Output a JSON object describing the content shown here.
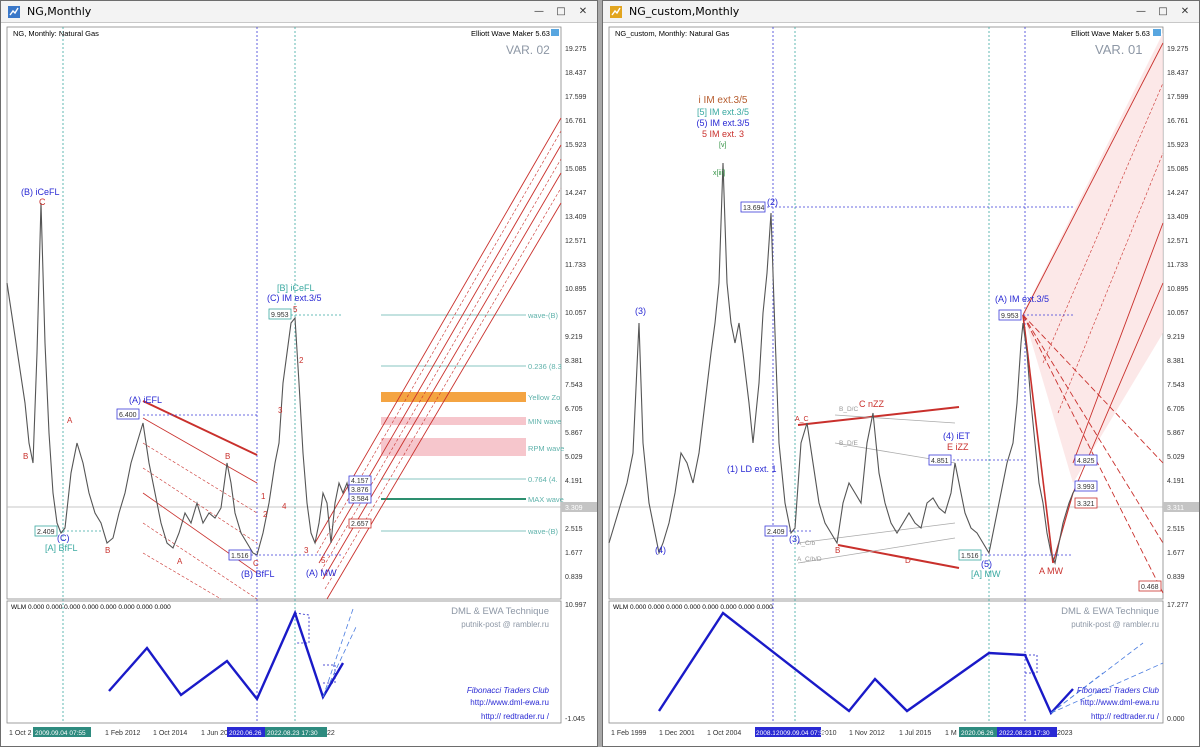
{
  "left": {
    "window_title": "NG,Monthly",
    "symbol_caption": "NG, Monthly:  Natural Gas",
    "indicator_name": "Elliott Wave Maker 5.63",
    "variant_label": "VAR. 02",
    "price_axis": [
      "19.275",
      "18.437",
      "17.599",
      "16.761",
      "15.923",
      "15.085",
      "14.247",
      "13.409",
      "12.571",
      "11.733",
      "10.895",
      "10.057",
      "9.219",
      "8.381",
      "7.543",
      "6.705",
      "5.867",
      "5.029",
      "4.191",
      "3.353",
      "2.515",
      "1.677",
      "0.839"
    ],
    "current_price": "3.309",
    "levels": [
      {
        "label": "wave-(B)",
        "color": "#5fb2ab"
      },
      {
        "label": "0.236 (8.3",
        "color": "#5fb2ab"
      },
      {
        "label": "Yellow Zo",
        "color": "#f4a442"
      },
      {
        "label": "MIN wave",
        "color": "#f2a7b0"
      },
      {
        "label": "RPM wave",
        "color": "#f2a7b0"
      },
      {
        "label": "0.764 (4.",
        "color": "#5fb2ab"
      },
      {
        "label": "MAX wave",
        "color": "#2d8f6f"
      },
      {
        "label": "wave-(B)",
        "color": "#5fb2ab"
      }
    ],
    "wave_labels": {
      "b_icefl": "(B) iCeFL",
      "c_top": "C",
      "a1": "A",
      "b1": "B",
      "c_bfl": "(C)",
      "a_bfl": "[A] BfFL",
      "b_bottom": "B",
      "a_iefl": "(A) iEFL",
      "b_mid": "B",
      "a_low": "A",
      "c_low": "C",
      "b_bfl": "(B) BfFL",
      "icefl_b": "[B] iCeFL",
      "c_im": "(C) IM ext.3/5",
      "w5": "5",
      "w3": "3",
      "w2": "2",
      "w1": "1",
      "w4": "4",
      "w2b": "2",
      "w3b": "3",
      "w5b": "5",
      "a_mw": "(A) MW"
    },
    "price_boxes": {
      "p9953": "9.953",
      "p6400": "6.400",
      "p2409": "2.409",
      "p1516": "1.516",
      "p4157": "4.157",
      "p3876": "3.876",
      "p3584": "3.584",
      "p2657": "2.657"
    },
    "sub_caption": "WLM 0.000 0.000 0.000 0.000 0.000 0.000 0.000 0.000",
    "sub_axis": [
      "10.997",
      "-1.045"
    ],
    "brand1": "DML & EWA Technique",
    "brand2": "putnik-post @ rambler.ru",
    "club1": "Fibonacci    Traders    Club",
    "club2": "http://www.dml-ewa.ru",
    "club3": "http://  redtrader.ru  /",
    "time_axis": [
      "1 Oct 2",
      "1 Feb 2012",
      "1 Oct 2014",
      "1 Jun 20",
      "22"
    ],
    "time_markers": [
      "2009.09.04 07:55",
      "2020.06.26",
      "2022.08.23 17:30"
    ]
  },
  "right": {
    "window_title": "NG_custom,Monthly",
    "symbol_caption": "NG_custom, Monthly:  Natural Gas",
    "indicator_name": "Elliott Wave Maker 5.63",
    "variant_label": "VAR. 01",
    "price_axis": [
      "19.275",
      "18.437",
      "17.599",
      "16.761",
      "15.923",
      "15.085",
      "14.247",
      "13.409",
      "12.571",
      "11.733",
      "10.895",
      "10.057",
      "9.219",
      "8.381",
      "7.543",
      "6.705",
      "5.867",
      "5.029",
      "4.191",
      "3.353",
      "2.515",
      "1.677",
      "0.839"
    ],
    "current_price": "3.311",
    "top_labels": [
      "i IM ext.3/5",
      "[5] IM ext.3/5",
      "(5) IM ext.3/5",
      "5 IM ext. 3"
    ],
    "wave_labels": {
      "v": "[v]",
      "xiii": "x[iii]",
      "w2": "(2)",
      "w3": "(3)",
      "w4": "(4)",
      "ld": "(1) LD ext. 1",
      "c_nzz": "C nZZ",
      "iet4": "(4) iET",
      "e_izz": "E iZZ",
      "a_im": "(A) IM ext.3/5",
      "a_mw": "[A] MW",
      "w5": "(5)",
      "a_mw2": "A MW",
      "a_c": "A_C",
      "b_dc": "B_D/C",
      "b_de": "B_D/E",
      "a_cb": "A_C/b",
      "a_cbd": "A_C/b/D",
      "b": "B",
      "d": "D",
      "w3r": "(3)"
    },
    "price_boxes": {
      "p13694": "13.694",
      "p9953": "9.953",
      "p4851": "4.851",
      "p2409": "2.409",
      "p1516": "1.516",
      "p4825": "4.825",
      "p3993": "3.993",
      "p3321": "3.321",
      "p0468": "0.468"
    },
    "sub_caption": "WLM 0.000 0.000 0.000 0.000 0.000 0.000 0.000 0.000",
    "sub_axis": [
      "17.277",
      "0.000"
    ],
    "brand1": "DML & EWA Technique",
    "brand2": "putnik-post @ rambler.ru",
    "club1": "Fibonacci    Traders    Club",
    "club2": "http://www.dml-ewa.ru",
    "club3": "http://  redtrader.ru  /",
    "time_axis": [
      "1 Feb 1999",
      "1 Dec 2001",
      "1 Oct 2004",
      "2010",
      "1 Nov 2012",
      "1 Jul 2015",
      "1 M",
      "2023"
    ],
    "time_markers": [
      "2008.1",
      "2009.09.04 07:55",
      "2020.06.26",
      "2022.08.23 17:30"
    ]
  },
  "colors": {
    "blue_line": "#2a2ad4",
    "teal": "#3aa9a1",
    "red": "#c9302c",
    "pink_fill": "#fbe0e0",
    "orange": "#f4a442"
  }
}
